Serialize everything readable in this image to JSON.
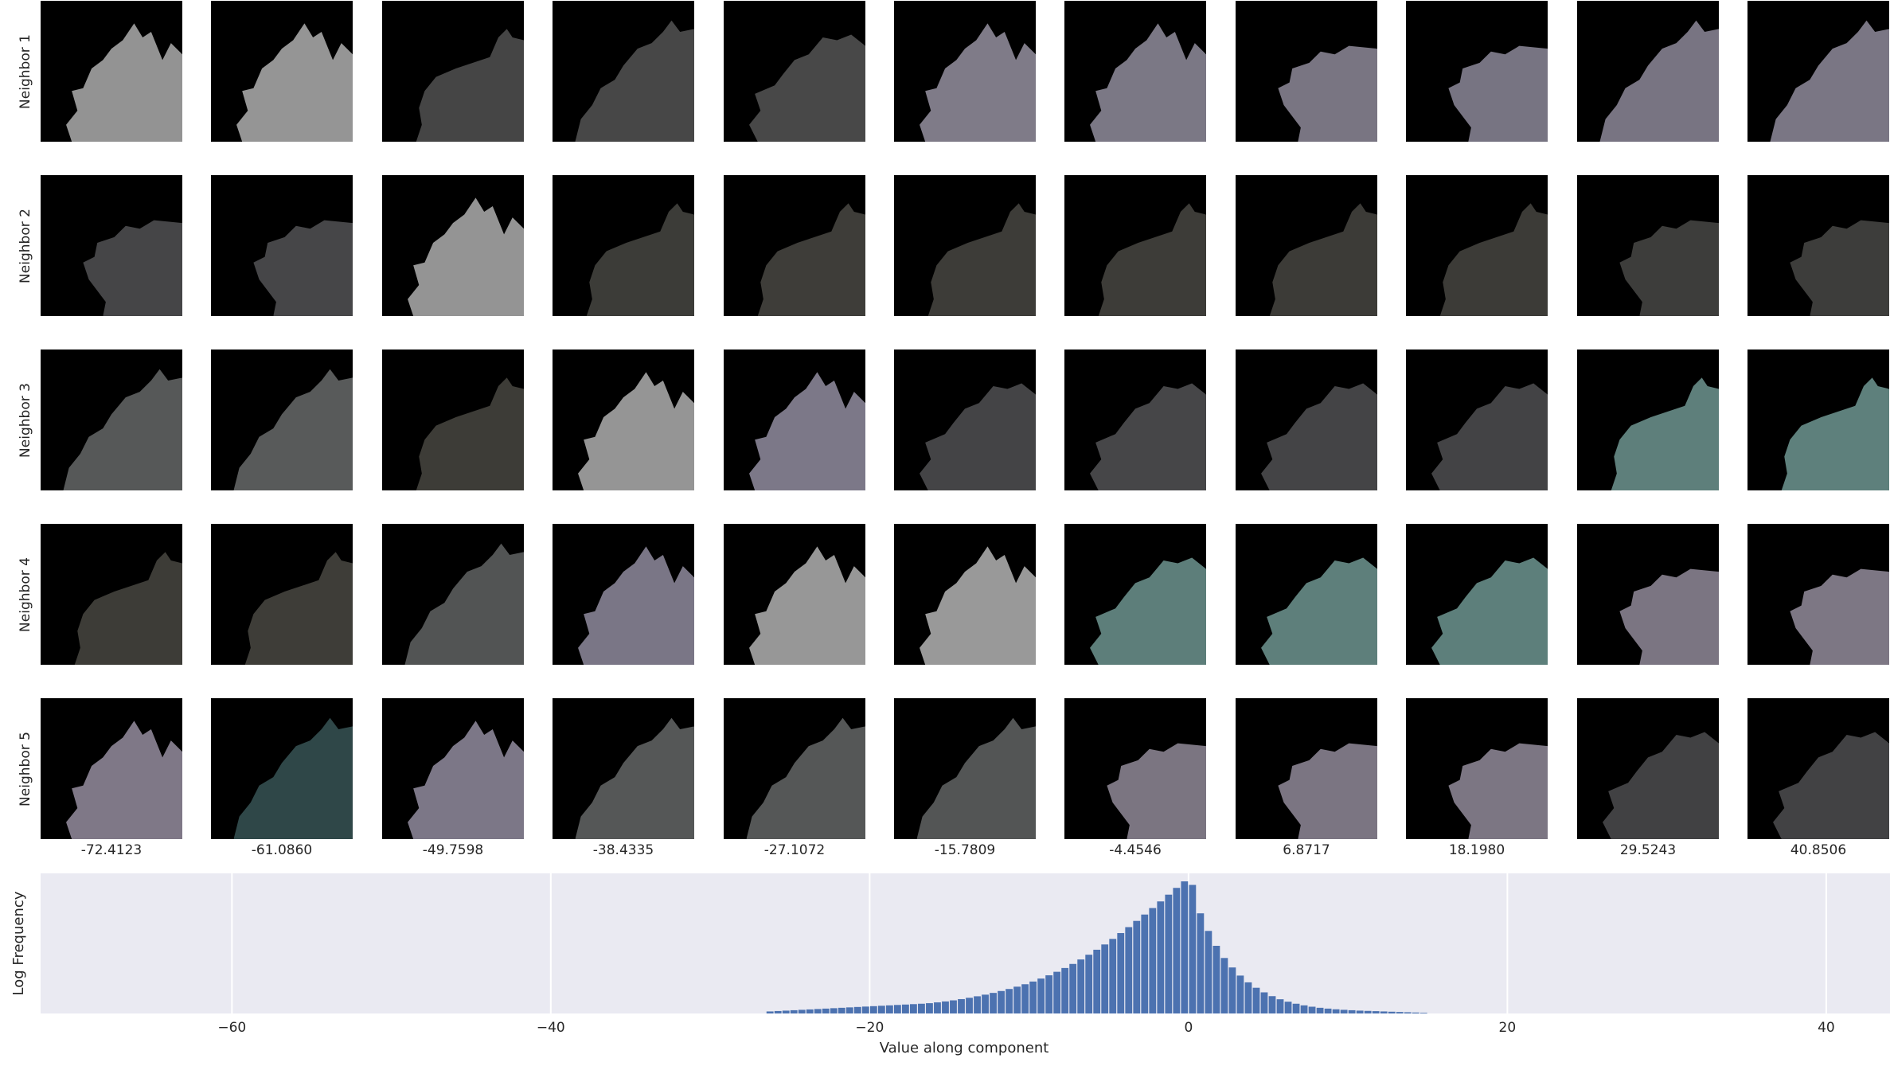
{
  "row_labels": [
    "Neighbor 1",
    "Neighbor 2",
    "Neighbor 3",
    "Neighbor 4",
    "Neighbor 5"
  ],
  "column_values": [
    "-72.4123",
    "-61.0860",
    "-49.7598",
    "-38.4335",
    "-27.1072",
    "-15.7809",
    "-4.4546",
    "6.8717",
    "18.1980",
    "29.5243",
    "40.8506"
  ],
  "tile_colors": [
    [
      "#939393",
      "#959595",
      "#454545",
      "#474747",
      "#484848",
      "#7f7b88",
      "#7b7885",
      "#797582",
      "#777482",
      "#787482",
      "#7a7684"
    ],
    [
      "#454547",
      "#464648",
      "#949494",
      "#3c3c38",
      "#3e3d39",
      "#3d3c38",
      "#3d3c38",
      "#3c3b37",
      "#3c3b37",
      "#3d3d3b",
      "#3d3d3b"
    ],
    [
      "#565858",
      "#585a5a",
      "#3d3c37",
      "#959595",
      "#7c7888",
      "#444446",
      "#464648",
      "#444446",
      "#434345",
      "#5e7f7b",
      "#5e807c"
    ],
    [
      "#3d3c37",
      "#3e3d38",
      "#525454",
      "#7a7686",
      "#979797",
      "#999999",
      "#5d7e7a",
      "#5e7f7b",
      "#5d7f7b",
      "#7b7582",
      "#7d7784"
    ],
    [
      "#7f7887",
      "#2f4748",
      "#7c7787",
      "#555757",
      "#555757",
      "#535555",
      "#7b7581",
      "#7b7582",
      "#7c7683",
      "#414143",
      "#424244"
    ]
  ],
  "chart_data": {
    "type": "bar",
    "xlabel": "Value along component",
    "ylabel": "Log Frequency",
    "xlim": [
      -72.0,
      44.0
    ],
    "x_ticks": [
      -60,
      -40,
      -20,
      0,
      20,
      40
    ],
    "x_tick_labels": [
      "−60",
      "−40",
      "−20",
      "0",
      "20",
      "40"
    ],
    "bar_color": "#4c72b0",
    "background": "#eaeaf2",
    "grid": true,
    "bin_width": 0.5,
    "x": [
      -26.5,
      -26.0,
      -25.5,
      -25.0,
      -24.5,
      -24.0,
      -23.5,
      -23.0,
      -22.5,
      -22.0,
      -21.5,
      -21.0,
      -20.5,
      -20.0,
      -19.5,
      -19.0,
      -18.5,
      -18.0,
      -17.5,
      -17.0,
      -16.5,
      -16.0,
      -15.5,
      -15.0,
      -14.5,
      -14.0,
      -13.5,
      -13.0,
      -12.5,
      -12.0,
      -11.5,
      -11.0,
      -10.5,
      -10.0,
      -9.5,
      -9.0,
      -8.5,
      -8.0,
      -7.5,
      -7.0,
      -6.5,
      -6.0,
      -5.5,
      -5.0,
      -4.5,
      -4.0,
      -3.5,
      -3.0,
      -2.5,
      -2.0,
      -1.5,
      -1.0,
      -0.5,
      0.0,
      0.5,
      1.0,
      1.5,
      2.0,
      2.5,
      3.0,
      3.5,
      4.0,
      4.5,
      5.0,
      5.5,
      6.0,
      6.5,
      7.0,
      7.5,
      8.0,
      8.5,
      9.0,
      9.5,
      10.0,
      10.5,
      11.0,
      11.5,
      12.0,
      12.5,
      13.0,
      13.5,
      14.0,
      14.5
    ],
    "y": [
      0.015,
      0.018,
      0.021,
      0.024,
      0.027,
      0.03,
      0.033,
      0.036,
      0.039,
      0.042,
      0.045,
      0.048,
      0.051,
      0.054,
      0.057,
      0.06,
      0.063,
      0.066,
      0.069,
      0.072,
      0.076,
      0.082,
      0.089,
      0.097,
      0.106,
      0.116,
      0.127,
      0.139,
      0.152,
      0.166,
      0.181,
      0.198,
      0.216,
      0.236,
      0.258,
      0.282,
      0.308,
      0.336,
      0.366,
      0.399,
      0.434,
      0.471,
      0.51,
      0.551,
      0.594,
      0.638,
      0.684,
      0.731,
      0.779,
      0.828,
      0.878,
      0.928,
      0.976,
      0.95,
      0.74,
      0.61,
      0.5,
      0.41,
      0.34,
      0.28,
      0.23,
      0.19,
      0.156,
      0.128,
      0.105,
      0.087,
      0.072,
      0.06,
      0.05,
      0.042,
      0.036,
      0.031,
      0.027,
      0.024,
      0.021,
      0.019,
      0.017,
      0.015,
      0.013,
      0.011,
      0.009,
      0.007,
      0.005
    ],
    "y_scale": "log"
  }
}
